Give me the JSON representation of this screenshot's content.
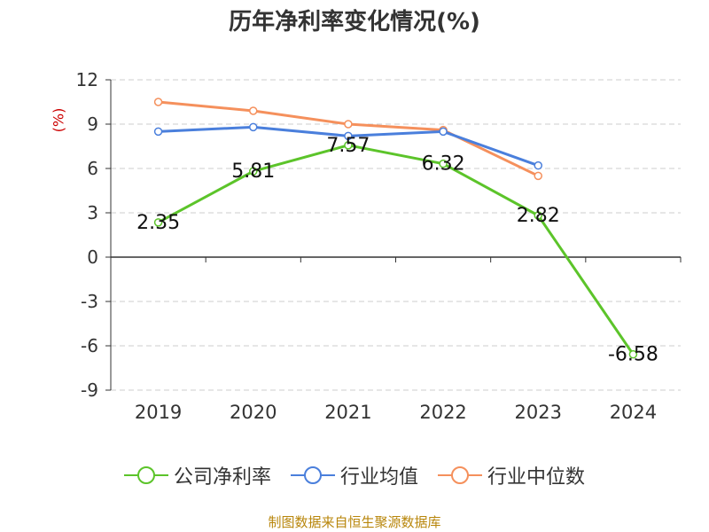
{
  "page": {
    "title": "历年净利率变化情况(%)",
    "unit_label": "(%)",
    "footer": "制图数据来自恒生聚源数据库"
  },
  "chart_data": {
    "type": "line",
    "title": "历年净利率变化情况(%)",
    "ylabel": "(%)",
    "categories": [
      "2019",
      "2020",
      "2021",
      "2022",
      "2023",
      "2024"
    ],
    "ylim": [
      -9,
      12
    ],
    "yticks": [
      12,
      9,
      6,
      3,
      0,
      -3,
      -6,
      -9
    ],
    "grid": true,
    "legend_position": "bottom",
    "series": [
      {
        "name": "公司净利率",
        "color": "#5cc42a",
        "show_labels": true,
        "values": [
          2.35,
          5.81,
          7.57,
          6.32,
          2.82,
          -6.58
        ],
        "labels": [
          "2.35",
          "5.81",
          "7.57",
          "6.32",
          "2.82",
          "-6.58"
        ]
      },
      {
        "name": "行业均值",
        "color": "#4a7fdc",
        "show_labels": false,
        "values": [
          8.5,
          8.8,
          8.2,
          8.5,
          6.2,
          null
        ]
      },
      {
        "name": "行业中位数",
        "color": "#f5905c",
        "show_labels": false,
        "values": [
          10.5,
          9.9,
          9.0,
          8.6,
          5.5,
          null
        ]
      }
    ]
  }
}
